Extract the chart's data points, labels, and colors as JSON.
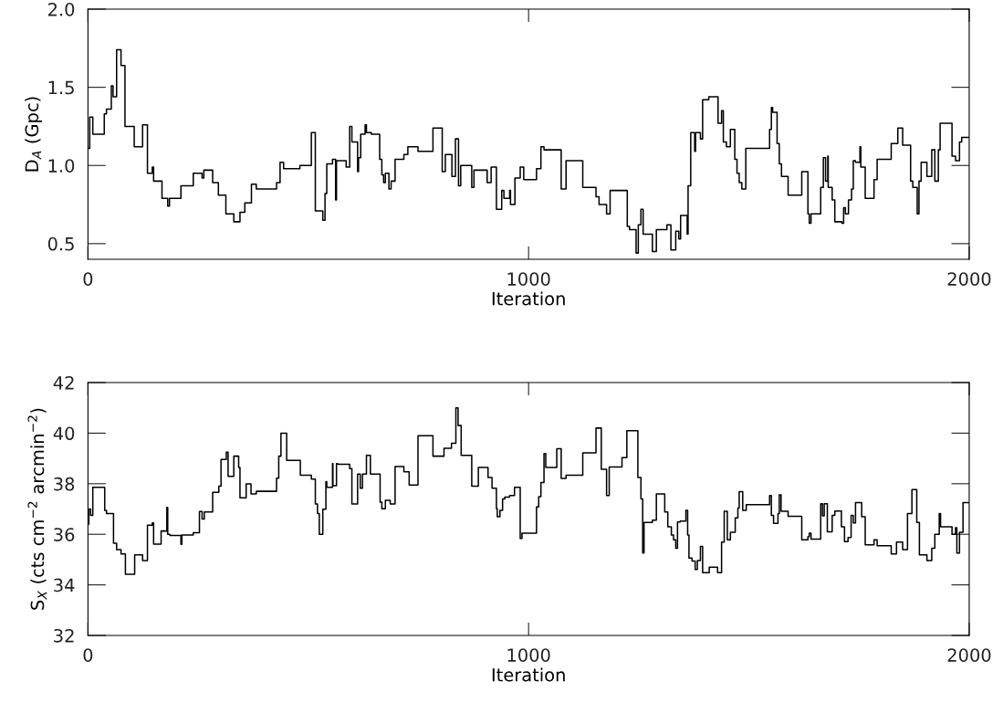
{
  "chart_data": [
    {
      "type": "step",
      "xlabel": "Iteration",
      "ylabel": "D$_{A}$ (Gpc)",
      "xlim": [
        0,
        2000
      ],
      "xticks": [
        0,
        1000,
        2000
      ],
      "ylim": [
        0.4,
        2.0
      ],
      "yticks": [
        {
          "value": 0.5,
          "label": "0.5"
        },
        {
          "value": 1.0,
          "label": "1.0"
        },
        {
          "value": 1.5,
          "label": "1.5"
        },
        {
          "value": 2.0,
          "label": "2.0"
        }
      ],
      "series": [
        {
          "color": "#000000",
          "x": [
            0,
            4,
            11,
            37,
            42,
            53,
            57,
            65,
            75,
            84,
            105,
            124,
            135,
            146,
            149,
            168,
            181,
            185,
            211,
            239,
            259,
            263,
            283,
            296,
            313,
            331,
            345,
            356,
            371,
            382,
            428,
            436,
            444,
            481,
            507,
            516,
            533,
            538,
            542,
            555,
            562,
            564,
            586,
            594,
            599,
            612,
            614,
            619,
            629,
            632,
            643,
            662,
            667,
            671,
            675,
            683,
            688,
            697,
            717,
            726,
            749,
            783,
            804,
            811,
            826,
            834,
            841,
            846,
            871,
            876,
            906,
            915,
            927,
            939,
            944,
            957,
            959,
            969,
            981,
            989,
            1018,
            1028,
            1035,
            1074,
            1085,
            1123,
            1153,
            1160,
            1177,
            1185,
            1224,
            1229,
            1244,
            1249,
            1255,
            1260,
            1281,
            1290,
            1314,
            1323,
            1334,
            1341,
            1345,
            1360,
            1362,
            1368,
            1377,
            1379,
            1390,
            1395,
            1409,
            1430,
            1438,
            1442,
            1449,
            1458,
            1468,
            1473,
            1478,
            1484,
            1493,
            1547,
            1551,
            1554,
            1564,
            1569,
            1574,
            1589,
            1620,
            1634,
            1637,
            1641,
            1663,
            1669,
            1674,
            1679,
            1680,
            1689,
            1695,
            1711,
            1715,
            1719,
            1726,
            1733,
            1737,
            1742,
            1752,
            1754,
            1764,
            1784,
            1791,
            1823,
            1838,
            1849,
            1867,
            1872,
            1882,
            1886,
            1891,
            1904,
            1915,
            1922,
            1930,
            1934,
            1961,
            1969,
            1978,
            1983,
            2000
          ],
          "values": [
            1.11,
            1.31,
            1.2,
            1.33,
            1.36,
            1.51,
            1.44,
            1.74,
            1.64,
            1.25,
            1.12,
            1.26,
            0.95,
            0.99,
            0.9,
            0.79,
            0.74,
            0.79,
            0.87,
            0.95,
            0.92,
            0.97,
            0.89,
            0.81,
            0.69,
            0.64,
            0.7,
            0.76,
            0.88,
            0.85,
            0.89,
            1.02,
            0.98,
            1.0,
            1.21,
            0.71,
            0.65,
            0.82,
            1.01,
            1.04,
            0.78,
            1.03,
            0.99,
            1.25,
            1.15,
            0.96,
            1.05,
            1.2,
            1.26,
            1.21,
            1.2,
            1.04,
            0.94,
            0.89,
            0.95,
            0.85,
            0.9,
            1.04,
            1.07,
            1.12,
            1.09,
            1.24,
            0.96,
            1.07,
            0.93,
            1.17,
            0.87,
            1.0,
            0.86,
            0.97,
            0.89,
            0.99,
            0.72,
            0.84,
            0.79,
            0.84,
            0.75,
            0.92,
            0.99,
            0.91,
            0.98,
            1.12,
            1.1,
            0.85,
            1.03,
            0.86,
            0.8,
            0.75,
            0.69,
            0.84,
            0.61,
            0.59,
            0.44,
            0.62,
            0.72,
            0.56,
            0.45,
            0.59,
            0.62,
            0.46,
            0.58,
            0.53,
            0.68,
            0.56,
            0.87,
            1.21,
            1.09,
            1.21,
            1.17,
            1.42,
            1.44,
            1.27,
            1.35,
            1.15,
            1.12,
            1.23,
            1.04,
            0.95,
            0.89,
            0.85,
            1.11,
            1.23,
            1.37,
            1.34,
            1.14,
            1.01,
            0.93,
            0.81,
            0.96,
            0.69,
            0.63,
            0.69,
            0.86,
            1.05,
            0.9,
            1.06,
            0.86,
            0.78,
            0.64,
            0.63,
            0.73,
            0.69,
            0.78,
            0.85,
            1.03,
            1.02,
            1.12,
            0.99,
            0.79,
            0.91,
            1.04,
            1.14,
            1.24,
            1.13,
            0.9,
            0.86,
            0.69,
            0.9,
            1.02,
            0.93,
            1.1,
            0.9,
            1.1,
            1.27,
            1.06,
            1.03,
            1.15,
            1.18,
            1.18
          ]
        }
      ]
    },
    {
      "type": "step",
      "xlabel": "Iteration",
      "ylabel": "S$_{X}$ (cts cm$^{−2}$ arcmin$^{−2}$)",
      "xlim": [
        0,
        2000
      ],
      "xticks": [
        0,
        1000,
        2000
      ],
      "ylim": [
        32,
        42
      ],
      "yticks": [
        32,
        34,
        36,
        38,
        40,
        42
      ],
      "series": [
        {
          "color": "#000000",
          "x": [
            0,
            2,
            6,
            11,
            38,
            42,
            58,
            65,
            75,
            85,
            106,
            124,
            135,
            146,
            149,
            166,
            179,
            181,
            186,
            211,
            213,
            239,
            253,
            259,
            264,
            283,
            297,
            302,
            314,
            318,
            331,
            342,
            345,
            359,
            370,
            382,
            428,
            433,
            438,
            451,
            482,
            507,
            516,
            521,
            525,
            533,
            540,
            542,
            555,
            556,
            564,
            567,
            594,
            599,
            612,
            618,
            623,
            632,
            641,
            663,
            667,
            675,
            686,
            697,
            717,
            729,
            749,
            783,
            808,
            825,
            835,
            840,
            847,
            871,
            886,
            908,
            917,
            927,
            929,
            935,
            941,
            946,
            957,
            968,
            981,
            985,
            1018,
            1023,
            1028,
            1035,
            1039,
            1064,
            1074,
            1085,
            1123,
            1153,
            1165,
            1177,
            1183,
            1212,
            1223,
            1248,
            1255,
            1259,
            1262,
            1281,
            1290,
            1309,
            1316,
            1324,
            1329,
            1334,
            1338,
            1344,
            1357,
            1361,
            1364,
            1371,
            1378,
            1383,
            1390,
            1395,
            1410,
            1429,
            1438,
            1444,
            1451,
            1458,
            1469,
            1475,
            1478,
            1486,
            1494,
            1547,
            1551,
            1556,
            1566,
            1569,
            1573,
            1589,
            1620,
            1634,
            1637,
            1641,
            1663,
            1667,
            1671,
            1678,
            1689,
            1695,
            1710,
            1717,
            1725,
            1732,
            1737,
            1742,
            1756,
            1764,
            1784,
            1791,
            1823,
            1835,
            1849,
            1860,
            1870,
            1881,
            1887,
            1904,
            1915,
            1922,
            1932,
            1935,
            1961,
            1969,
            1972,
            1978,
            1986,
            2000
          ],
          "values": [
            36.4,
            37.0,
            36.75,
            37.86,
            36.95,
            36.82,
            35.65,
            35.39,
            35.22,
            34.42,
            35.19,
            34.96,
            36.36,
            36.45,
            35.61,
            36.13,
            37.06,
            36.0,
            35.95,
            35.6,
            35.97,
            36.06,
            36.9,
            36.6,
            36.88,
            37.66,
            37.9,
            38.96,
            39.25,
            38.29,
            39.09,
            38.64,
            37.44,
            37.99,
            37.6,
            37.7,
            38.22,
            39.09,
            40.0,
            38.92,
            38.34,
            38.18,
            37.2,
            36.82,
            36.0,
            36.99,
            38.08,
            37.86,
            38.8,
            37.92,
            38.8,
            38.77,
            38.6,
            37.2,
            38.38,
            37.82,
            38.38,
            39.12,
            38.38,
            37.27,
            37.01,
            37.34,
            37.2,
            38.68,
            38.47,
            37.95,
            39.9,
            39.09,
            39.4,
            39.6,
            41.0,
            40.3,
            39.12,
            37.9,
            38.64,
            38.25,
            37.82,
            37.01,
            36.69,
            36.95,
            37.4,
            37.47,
            37.53,
            37.86,
            35.84,
            36.04,
            37.08,
            37.49,
            38.05,
            39.19,
            38.64,
            39.38,
            38.21,
            38.34,
            39.22,
            40.2,
            38.57,
            37.53,
            38.66,
            39.03,
            40.1,
            38.25,
            37.4,
            35.26,
            36.47,
            36.56,
            37.6,
            36.88,
            36.3,
            35.97,
            35.78,
            35.45,
            36.49,
            36.52,
            36.95,
            35.97,
            35.06,
            34.94,
            34.61,
            34.96,
            35.52,
            34.48,
            34.7,
            34.48,
            35.69,
            36.91,
            35.78,
            36.08,
            36.65,
            37.04,
            37.69,
            36.95,
            37.17,
            37.53,
            36.75,
            36.43,
            36.82,
            37.56,
            36.91,
            36.71,
            35.78,
            35.91,
            36.04,
            35.81,
            37.21,
            36.73,
            37.21,
            36.1,
            36.75,
            36.92,
            36.3,
            35.71,
            35.87,
            36.75,
            36.45,
            37.25,
            36.69,
            35.58,
            35.78,
            35.55,
            35.22,
            35.69,
            35.39,
            36.82,
            37.77,
            36.47,
            35.19,
            34.96,
            35.45,
            36.0,
            36.82,
            36.3,
            36.0,
            36.26,
            35.26,
            36.08,
            37.25,
            37.25
          ]
        }
      ]
    }
  ]
}
